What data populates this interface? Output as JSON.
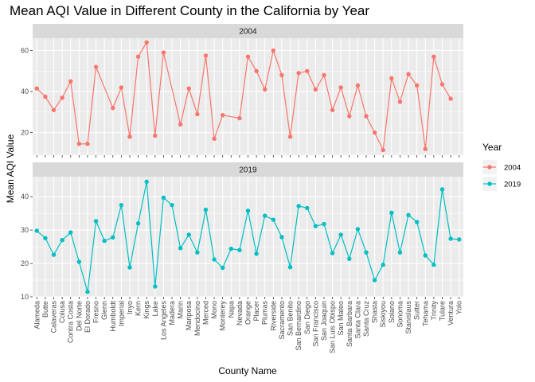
{
  "chart_data": {
    "type": "line",
    "title": "Mean AQI Value in Different County in the California by Year",
    "xlabel": "County Name",
    "ylabel": "Mean AQI Value",
    "legend_title": "Year",
    "legend_position": "right",
    "grid": true,
    "categories": [
      "Alameda",
      "Butte",
      "Calaveras",
      "Colusa",
      "Contra Costa",
      "Del Norte",
      "El Dorado",
      "Fresno",
      "Glenn",
      "Humboldt",
      "Imperial",
      "Inyo",
      "Kern",
      "Kings",
      "Lake",
      "Los Angeles",
      "Madera",
      "Marin",
      "Mariposa",
      "Mendocino",
      "Merced",
      "Mono",
      "Monterey",
      "Napa",
      "Nevada",
      "Orange",
      "Placer",
      "Plumas",
      "Riverside",
      "Sacramento",
      "San Benito",
      "San Bernardino",
      "San Diego",
      "San Francisco",
      "San Joaquin",
      "San Luis Obispo",
      "San Mateo",
      "Santa Barbara",
      "Santa Clara",
      "Santa Cruz",
      "Shasta",
      "Siskiyou",
      "Solano",
      "Sonoma",
      "Stanislaus",
      "Sutter",
      "Tehama",
      "Trinity",
      "Tulare",
      "Ventura",
      "Yolo"
    ],
    "panels": [
      {
        "strip": "2004",
        "color": "#F8766D",
        "ylim": [
          9,
          66
        ],
        "yticks": [
          20,
          40,
          60
        ],
        "points": [
          [
            "Alameda",
            41.5
          ],
          [
            "Butte",
            37.5
          ],
          [
            "Calaveras",
            31
          ],
          [
            "Colusa",
            37
          ],
          [
            "Contra Costa",
            45
          ],
          [
            "Del Norte",
            14.5
          ],
          [
            "El Dorado",
            14.5
          ],
          [
            "Fresno",
            52
          ],
          [
            "Humboldt",
            32
          ],
          [
            "Imperial",
            42
          ],
          [
            "Inyo",
            18
          ],
          [
            "Kern",
            57
          ],
          [
            "Kings",
            64
          ],
          [
            "Lake",
            18.5
          ],
          [
            "Los Angeles",
            59
          ],
          [
            "Marin",
            24
          ],
          [
            "Mariposa",
            41.5
          ],
          [
            "Mendocino",
            29
          ],
          [
            "Merced",
            57.5
          ],
          [
            "Mono",
            17
          ],
          [
            "Monterey",
            28.5
          ],
          [
            "Nevada",
            27
          ],
          [
            "Orange",
            57
          ],
          [
            "Placer",
            50
          ],
          [
            "Plumas",
            41
          ],
          [
            "Riverside",
            60
          ],
          [
            "Sacramento",
            48
          ],
          [
            "San Benito",
            18
          ],
          [
            "San Bernardino",
            49
          ],
          [
            "San Diego",
            50
          ],
          [
            "San Francisco",
            41
          ],
          [
            "San Joaquin",
            48
          ],
          [
            "San Luis Obispo",
            31
          ],
          [
            "San Mateo",
            42
          ],
          [
            "Santa Barbara",
            28
          ],
          [
            "Santa Clara",
            43
          ],
          [
            "Santa Cruz",
            28
          ],
          [
            "Shasta",
            20
          ],
          [
            "Siskiyou",
            11.5
          ],
          [
            "Solano",
            46.5
          ],
          [
            "Sonoma",
            35
          ],
          [
            "Stanislaus",
            48.5
          ],
          [
            "Sutter",
            43
          ],
          [
            "Tehama",
            12
          ],
          [
            "Trinity",
            57
          ],
          [
            "Tulare",
            43.5
          ],
          [
            "Ventura",
            36.5
          ]
        ]
      },
      {
        "strip": "2019",
        "color": "#00BFC4",
        "ylim": [
          10,
          46
        ],
        "yticks": [
          10,
          20,
          30,
          40
        ],
        "points": [
          [
            "Alameda",
            29.8
          ],
          [
            "Butte",
            27.6
          ],
          [
            "Calaveras",
            22.6
          ],
          [
            "Colusa",
            27
          ],
          [
            "Contra Costa",
            29.3
          ],
          [
            "Del Norte",
            20.5
          ],
          [
            "El Dorado",
            11.5
          ],
          [
            "Fresno",
            32.7
          ],
          [
            "Glenn",
            26.8
          ],
          [
            "Humboldt",
            27.8
          ],
          [
            "Imperial",
            37.5
          ],
          [
            "Inyo",
            18.8
          ],
          [
            "Kern",
            32
          ],
          [
            "Kings",
            44.5
          ],
          [
            "Lake",
            13.1
          ],
          [
            "Los Angeles",
            39.7
          ],
          [
            "Madera",
            37.5
          ],
          [
            "Marin",
            24.6
          ],
          [
            "Mariposa",
            28.6
          ],
          [
            "Mendocino",
            23.3
          ],
          [
            "Merced",
            36.1
          ],
          [
            "Mono",
            21.2
          ],
          [
            "Monterey",
            18.7
          ],
          [
            "Napa",
            24.4
          ],
          [
            "Nevada",
            24
          ],
          [
            "Orange",
            35.8
          ],
          [
            "Placer",
            22.9
          ],
          [
            "Plumas",
            34.3
          ],
          [
            "Riverside",
            33.1
          ],
          [
            "Sacramento",
            27.9
          ],
          [
            "San Benito",
            18.9
          ],
          [
            "San Bernardino",
            37.2
          ],
          [
            "San Diego",
            36.6
          ],
          [
            "San Francisco",
            31.2
          ],
          [
            "San Joaquin",
            31.8
          ],
          [
            "San Luis Obispo",
            23.1
          ],
          [
            "San Mateo",
            28.6
          ],
          [
            "Santa Barbara",
            21.4
          ],
          [
            "Santa Clara",
            30.3
          ],
          [
            "Santa Cruz",
            23.3
          ],
          [
            "Shasta",
            15
          ],
          [
            "Siskiyou",
            19.6
          ],
          [
            "Solano",
            35.2
          ],
          [
            "Sonoma",
            23.3
          ],
          [
            "Stanislaus",
            34.5
          ],
          [
            "Sutter",
            32.4
          ],
          [
            "Tehama",
            22.4
          ],
          [
            "Trinity",
            19.6
          ],
          [
            "Tulare",
            42.2
          ],
          [
            "Ventura",
            27.4
          ],
          [
            "Yolo",
            27.2
          ]
        ]
      }
    ],
    "legend": [
      {
        "label": "2004",
        "color": "#F8766D"
      },
      {
        "label": "2019",
        "color": "#00BFC4"
      }
    ]
  }
}
